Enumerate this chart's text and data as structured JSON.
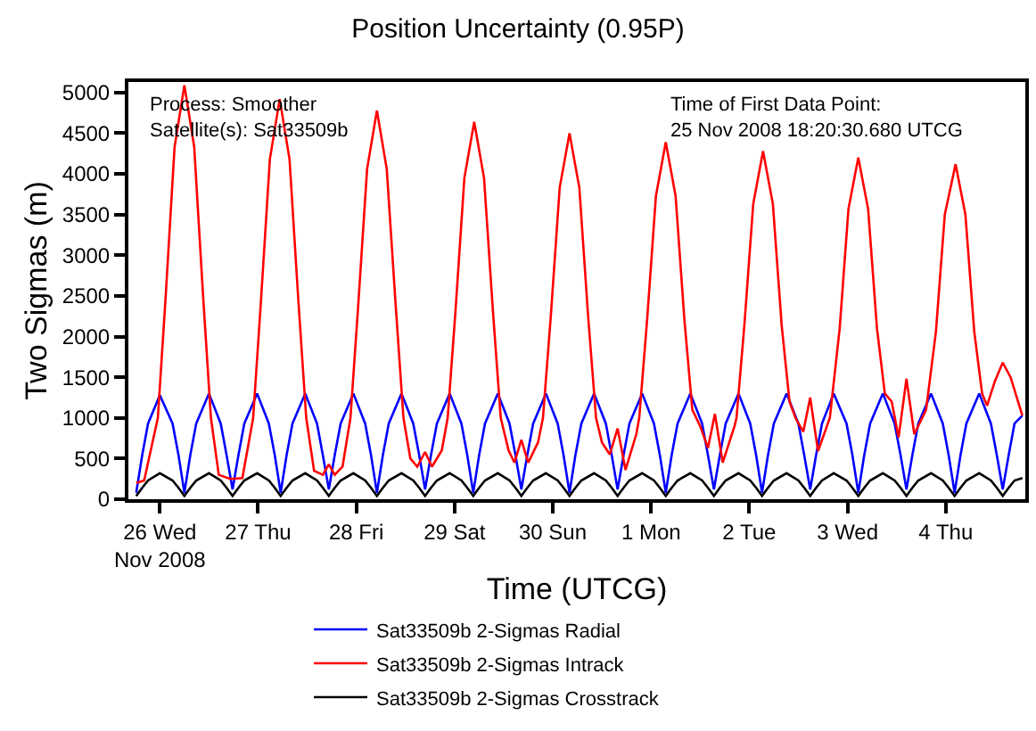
{
  "chart_data": {
    "type": "line",
    "title": "Position Uncertainty (0.95P)",
    "xlabel": "Time (UTCG)",
    "ylabel": "Two Sigmas (m)",
    "annotations": [
      "Process: Smoother\nSatellite(s): Sat33509b",
      "Time of First Data Point:\n25 Nov 2008 18:20:30.680 UTCG"
    ],
    "xlim": [
      "2008-11-25T16:19",
      "2008-12-04T19:26"
    ],
    "ylim": [
      0,
      5130
    ],
    "xticks": [
      {
        "value": "2008-11-26",
        "label": "26 Wed\nNov 2008"
      },
      {
        "value": "2008-11-27",
        "label": "27 Thu"
      },
      {
        "value": "2008-11-28",
        "label": "28 Fri"
      },
      {
        "value": "2008-11-29",
        "label": "29 Sat"
      },
      {
        "value": "2008-11-30",
        "label": "30 Sun"
      },
      {
        "value": "2008-12-01",
        "label": "1 Mon"
      },
      {
        "value": "2008-12-02",
        "label": "2 Tue"
      },
      {
        "value": "2008-12-03",
        "label": "3 Wed"
      },
      {
        "value": "2008-12-04",
        "label": "4 Thu"
      }
    ],
    "yticks": [
      0,
      500,
      1000,
      1500,
      2000,
      2500,
      3000,
      3500,
      4000,
      4500,
      5000
    ],
    "legend": "bottom",
    "marker": "none",
    "line_style": "solid",
    "series": [
      {
        "name": "Sat33509b 2-Sigmas Radial",
        "color": "#0000ff",
        "x": [
          "2008-11-25T18:14",
          "2008-11-25T19:41",
          "2008-11-25T21:07",
          "2008-11-26T00:00",
          "2008-11-26T03:07",
          "2008-11-26T04:34",
          "2008-11-26T06:00",
          "2008-11-26T07:26",
          "2008-11-26T08:53",
          "2008-11-26T12:00",
          "2008-11-26T14:53",
          "2008-11-26T16:19",
          "2008-11-26T17:46",
          "2008-11-26T19:12",
          "2008-11-26T20:38",
          "2008-11-26T23:46",
          "2008-11-27T02:38",
          "2008-11-27T04:05",
          "2008-11-27T05:31",
          "2008-11-27T06:58",
          "2008-11-27T08:24",
          "2008-11-27T11:31",
          "2008-11-27T14:24",
          "2008-11-27T15:50",
          "2008-11-27T17:17",
          "2008-11-27T18:43",
          "2008-11-27T20:10",
          "2008-11-27T23:17",
          "2008-11-28T02:10",
          "2008-11-28T03:36",
          "2008-11-28T05:02",
          "2008-11-28T06:29",
          "2008-11-28T07:55",
          "2008-11-28T11:02",
          "2008-11-28T13:55",
          "2008-11-28T15:22",
          "2008-11-28T16:48",
          "2008-11-28T18:14",
          "2008-11-28T19:41",
          "2008-11-28T22:48",
          "2008-11-29T01:41",
          "2008-11-29T03:07",
          "2008-11-29T04:34",
          "2008-11-29T06:00",
          "2008-11-29T07:26",
          "2008-11-29T10:34",
          "2008-11-29T13:26",
          "2008-11-29T14:53",
          "2008-11-29T16:19",
          "2008-11-29T17:46",
          "2008-11-29T19:12",
          "2008-11-29T22:19",
          "2008-11-30T01:12",
          "2008-11-30T02:38",
          "2008-11-30T04:05",
          "2008-11-30T05:31",
          "2008-11-30T06:58",
          "2008-11-30T10:05",
          "2008-11-30T12:58",
          "2008-11-30T14:24",
          "2008-11-30T15:50",
          "2008-11-30T17:17",
          "2008-11-30T18:43",
          "2008-11-30T21:50",
          "2008-12-01T00:43",
          "2008-12-01T02:10",
          "2008-12-01T03:36",
          "2008-12-01T05:02",
          "2008-12-01T06:29",
          "2008-12-01T09:36",
          "2008-12-01T12:29",
          "2008-12-01T13:55",
          "2008-12-01T15:22",
          "2008-12-01T16:48",
          "2008-12-01T18:14",
          "2008-12-01T21:22",
          "2008-12-02T00:14",
          "2008-12-02T01:41",
          "2008-12-02T03:07",
          "2008-12-02T04:34",
          "2008-12-02T06:00",
          "2008-12-02T09:07",
          "2008-12-02T12:00",
          "2008-12-02T13:26",
          "2008-12-02T14:53",
          "2008-12-02T16:19",
          "2008-12-02T17:46",
          "2008-12-02T20:38",
          "2008-12-02T23:46",
          "2008-12-03T01:12",
          "2008-12-03T02:38",
          "2008-12-03T04:05",
          "2008-12-03T05:31",
          "2008-12-03T08:38",
          "2008-12-03T11:31",
          "2008-12-03T12:58",
          "2008-12-03T14:24",
          "2008-12-03T15:50",
          "2008-12-03T17:17",
          "2008-12-03T20:24",
          "2008-12-03T23:17",
          "2008-12-04T00:43",
          "2008-12-04T02:10",
          "2008-12-04T03:36",
          "2008-12-04T05:02",
          "2008-12-04T08:10",
          "2008-12-04T11:02",
          "2008-12-04T12:29",
          "2008-12-04T13:55",
          "2008-12-04T15:22",
          "2008-12-04T16:48",
          "2008-12-04T18:43"
        ],
        "values": [
          80,
          540,
          930,
          1280,
          930,
          540,
          80,
          540,
          930,
          1300,
          930,
          540,
          120,
          540,
          930,
          1300,
          930,
          540,
          80,
          540,
          930,
          1300,
          930,
          540,
          120,
          540,
          930,
          1300,
          930,
          540,
          80,
          540,
          930,
          1300,
          930,
          540,
          120,
          540,
          930,
          1300,
          930,
          540,
          80,
          540,
          930,
          1300,
          930,
          540,
          120,
          540,
          930,
          1300,
          930,
          540,
          80,
          540,
          930,
          1300,
          930,
          540,
          120,
          540,
          930,
          1300,
          930,
          540,
          80,
          540,
          930,
          1300,
          930,
          540,
          120,
          540,
          930,
          1300,
          930,
          540,
          80,
          540,
          930,
          1300,
          930,
          540,
          120,
          540,
          930,
          1300,
          930,
          540,
          80,
          540,
          930,
          1300,
          930,
          540,
          120,
          540,
          930,
          1300,
          930,
          540,
          80,
          540,
          930,
          1300,
          930,
          540,
          120,
          540,
          930,
          1030
        ]
      },
      {
        "name": "Sat33509b 2-Sigmas Intrack",
        "color": "#ff0000",
        "x": [
          "2008-11-25T18:14",
          "2008-11-25T20:10",
          "2008-11-25T23:31",
          "2008-11-26T01:26",
          "2008-11-26T03:36",
          "2008-11-26T06:00",
          "2008-11-26T08:24",
          "2008-11-26T10:34",
          "2008-11-26T12:29",
          "2008-11-26T14:24",
          "2008-11-26T17:17",
          "2008-11-26T20:10",
          "2008-11-26T22:48",
          "2008-11-27T00:43",
          "2008-11-27T02:53",
          "2008-11-27T05:17",
          "2008-11-27T07:41",
          "2008-11-27T09:50",
          "2008-11-27T11:46",
          "2008-11-27T13:41",
          "2008-11-27T15:50",
          "2008-11-27T17:17",
          "2008-11-27T18:43",
          "2008-11-27T20:38",
          "2008-11-27T22:34",
          "2008-11-28T00:29",
          "2008-11-28T02:38",
          "2008-11-28T05:02",
          "2008-11-28T07:26",
          "2008-11-28T09:36",
          "2008-11-28T11:31",
          "2008-11-28T13:12",
          "2008-11-28T14:53",
          "2008-11-28T16:48",
          "2008-11-28T18:29",
          "2008-11-28T20:53",
          "2008-11-28T22:19",
          "2008-11-29T00:14",
          "2008-11-29T02:24",
          "2008-11-29T04:48",
          "2008-11-29T07:12",
          "2008-11-29T09:22",
          "2008-11-29T11:17",
          "2008-11-29T13:12",
          "2008-11-29T14:38",
          "2008-11-29T16:19",
          "2008-11-29T18:00",
          "2008-11-29T20:24",
          "2008-11-29T21:36",
          "2008-11-29T23:31",
          "2008-11-30T01:41",
          "2008-11-30T04:05",
          "2008-11-30T06:29",
          "2008-11-30T08:38",
          "2008-11-30T10:34",
          "2008-11-30T12:00",
          "2008-11-30T13:55",
          "2008-11-30T15:50",
          "2008-11-30T17:46",
          "2008-11-30T20:24",
          "2008-11-30T21:07",
          "2008-11-30T23:02",
          "2008-12-01T01:12",
          "2008-12-01T03:36",
          "2008-12-01T06:00",
          "2008-12-01T08:10",
          "2008-12-01T10:05",
          "2008-12-01T12:00",
          "2008-12-01T13:55",
          "2008-12-01T15:36",
          "2008-12-01T17:31",
          "2008-12-01T20:24",
          "2008-12-01T20:53",
          "2008-12-01T22:48",
          "2008-12-02T00:58",
          "2008-12-02T03:22",
          "2008-12-02T05:46",
          "2008-12-02T07:55",
          "2008-12-02T09:50",
          "2008-12-02T11:17",
          "2008-12-02T13:12",
          "2008-12-02T14:53",
          "2008-12-02T16:48",
          "2008-12-02T19:41",
          "2008-12-02T22:05",
          "2008-12-03T00:14",
          "2008-12-03T02:38",
          "2008-12-03T05:02",
          "2008-12-03T07:12",
          "2008-12-03T09:07",
          "2008-12-03T10:48",
          "2008-12-03T12:29",
          "2008-12-03T14:24",
          "2008-12-03T16:19",
          "2008-12-03T19:12",
          "2008-12-03T21:36",
          "2008-12-03T23:46",
          "2008-12-04T02:24",
          "2008-12-04T04:48",
          "2008-12-04T06:58",
          "2008-12-04T08:53",
          "2008-12-04T10:05",
          "2008-12-04T12:00",
          "2008-12-04T13:55",
          "2008-12-04T15:50",
          "2008-12-04T18:43"
        ],
        "values": [
          200,
          230,
          1000,
          2500,
          4330,
          5090,
          4330,
          2500,
          1000,
          300,
          250,
          260,
          1000,
          2450,
          4180,
          4920,
          4180,
          2450,
          1000,
          350,
          300,
          430,
          300,
          400,
          1000,
          2400,
          4060,
          4780,
          4060,
          2400,
          1000,
          500,
          400,
          580,
          400,
          600,
          1000,
          2320,
          3950,
          4640,
          3950,
          2320,
          1000,
          600,
          450,
          730,
          450,
          700,
          1000,
          2250,
          3830,
          4500,
          3830,
          2250,
          1000,
          700,
          550,
          870,
          360,
          800,
          1000,
          2200,
          3730,
          4390,
          3730,
          2200,
          1100,
          900,
          630,
          1050,
          450,
          900,
          1000,
          2140,
          3630,
          4280,
          3630,
          2140,
          1200,
          1000,
          830,
          1250,
          590,
          1000,
          2100,
          3570,
          4200,
          3570,
          2100,
          1300,
          1200,
          760,
          1480,
          800,
          1100,
          2060,
          3500,
          4120,
          3500,
          2060,
          1300,
          1150,
          1450,
          1680,
          1500,
          1030
        ]
      },
      {
        "name": "Sat33509b 2-Sigmas Crosstrack",
        "color": "#000000",
        "x": [
          "2008-11-25T18:14",
          "2008-11-25T19:41",
          "2008-11-25T21:07",
          "2008-11-26T00:00",
          "2008-11-26T03:07",
          "2008-11-26T04:34",
          "2008-11-26T06:00",
          "2008-11-26T07:26",
          "2008-11-26T08:53",
          "2008-11-26T12:00",
          "2008-11-26T14:53",
          "2008-11-26T16:19",
          "2008-11-26T17:46",
          "2008-11-26T19:12",
          "2008-11-26T20:38",
          "2008-11-26T23:46",
          "2008-11-27T02:38",
          "2008-11-27T04:05",
          "2008-11-27T05:31",
          "2008-11-27T06:58",
          "2008-11-27T08:24",
          "2008-11-27T11:31",
          "2008-11-27T14:24",
          "2008-11-27T15:50",
          "2008-11-27T17:17",
          "2008-11-27T18:43",
          "2008-11-27T20:10",
          "2008-11-27T23:17",
          "2008-11-28T02:10",
          "2008-11-28T03:36",
          "2008-11-28T05:02",
          "2008-11-28T06:29",
          "2008-11-28T07:55",
          "2008-11-28T11:02",
          "2008-11-28T13:55",
          "2008-11-28T15:22",
          "2008-11-28T16:48",
          "2008-11-28T18:14",
          "2008-11-28T19:41",
          "2008-11-28T22:48",
          "2008-11-29T01:41",
          "2008-11-29T03:07",
          "2008-11-29T04:34",
          "2008-11-29T06:00",
          "2008-11-29T07:26",
          "2008-11-29T10:34",
          "2008-11-29T13:26",
          "2008-11-29T14:53",
          "2008-11-29T16:19",
          "2008-11-29T17:46",
          "2008-11-29T19:12",
          "2008-11-29T22:19",
          "2008-11-30T01:12",
          "2008-11-30T02:38",
          "2008-11-30T04:05",
          "2008-11-30T05:31",
          "2008-11-30T06:58",
          "2008-11-30T10:05",
          "2008-11-30T12:58",
          "2008-11-30T14:24",
          "2008-11-30T15:50",
          "2008-11-30T17:17",
          "2008-11-30T18:43",
          "2008-11-30T21:50",
          "2008-12-01T00:43",
          "2008-12-01T02:10",
          "2008-12-01T03:36",
          "2008-12-01T05:02",
          "2008-12-01T06:29",
          "2008-12-01T09:36",
          "2008-12-01T12:29",
          "2008-12-01T13:55",
          "2008-12-01T15:22",
          "2008-12-01T16:48",
          "2008-12-01T18:14",
          "2008-12-01T21:22",
          "2008-12-02T00:14",
          "2008-12-02T01:41",
          "2008-12-02T03:07",
          "2008-12-02T04:34",
          "2008-12-02T06:00",
          "2008-12-02T09:07",
          "2008-12-02T12:00",
          "2008-12-02T13:26",
          "2008-12-02T14:53",
          "2008-12-02T16:19",
          "2008-12-02T17:46",
          "2008-12-02T20:38",
          "2008-12-02T23:46",
          "2008-12-03T01:12",
          "2008-12-03T02:38",
          "2008-12-03T04:05",
          "2008-12-03T05:31",
          "2008-12-03T08:38",
          "2008-12-03T11:31",
          "2008-12-03T12:58",
          "2008-12-03T14:24",
          "2008-12-03T15:50",
          "2008-12-03T17:17",
          "2008-12-03T20:24",
          "2008-12-03T23:17",
          "2008-12-04T00:43",
          "2008-12-04T02:10",
          "2008-12-04T03:36",
          "2008-12-04T05:02",
          "2008-12-04T08:10",
          "2008-12-04T11:02",
          "2008-12-04T12:29",
          "2008-12-04T13:55",
          "2008-12-04T15:22",
          "2008-12-04T16:48",
          "2008-12-04T18:43"
        ],
        "values": [
          40,
          140,
          230,
          320,
          230,
          140,
          40,
          140,
          230,
          320,
          230,
          140,
          40,
          140,
          230,
          320,
          230,
          140,
          40,
          140,
          230,
          320,
          230,
          140,
          40,
          140,
          230,
          320,
          230,
          140,
          40,
          140,
          230,
          320,
          230,
          140,
          40,
          140,
          230,
          320,
          230,
          140,
          40,
          140,
          230,
          320,
          230,
          140,
          40,
          140,
          230,
          320,
          230,
          140,
          40,
          140,
          230,
          320,
          230,
          140,
          40,
          140,
          230,
          320,
          230,
          140,
          40,
          140,
          230,
          320,
          230,
          140,
          40,
          140,
          230,
          320,
          230,
          140,
          40,
          140,
          230,
          320,
          230,
          140,
          40,
          140,
          230,
          320,
          230,
          140,
          40,
          140,
          230,
          320,
          230,
          140,
          40,
          140,
          230,
          320,
          230,
          140,
          40,
          140,
          230,
          320,
          230,
          140,
          40,
          140,
          230,
          260
        ]
      }
    ]
  }
}
